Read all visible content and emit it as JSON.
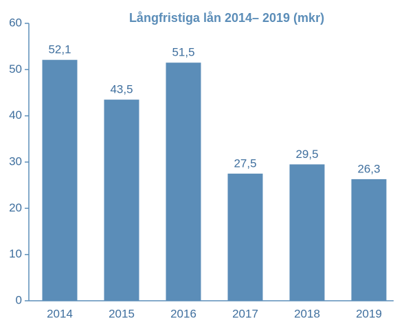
{
  "chart_data": {
    "type": "bar",
    "title": "Långfristiga lån 2014– 2019 (mkr)",
    "categories": [
      "2014",
      "2015",
      "2016",
      "2017",
      "2018",
      "2019"
    ],
    "values": [
      52.1,
      43.5,
      51.5,
      27.5,
      29.5,
      26.3
    ],
    "value_labels": [
      "52,1",
      "43,5",
      "51,5",
      "27,5",
      "29,5",
      "26,3"
    ],
    "color": "#5b8db8",
    "ylim": [
      0,
      60
    ],
    "yticks": [
      0,
      10,
      20,
      30,
      40,
      50,
      60
    ],
    "grid": false
  }
}
